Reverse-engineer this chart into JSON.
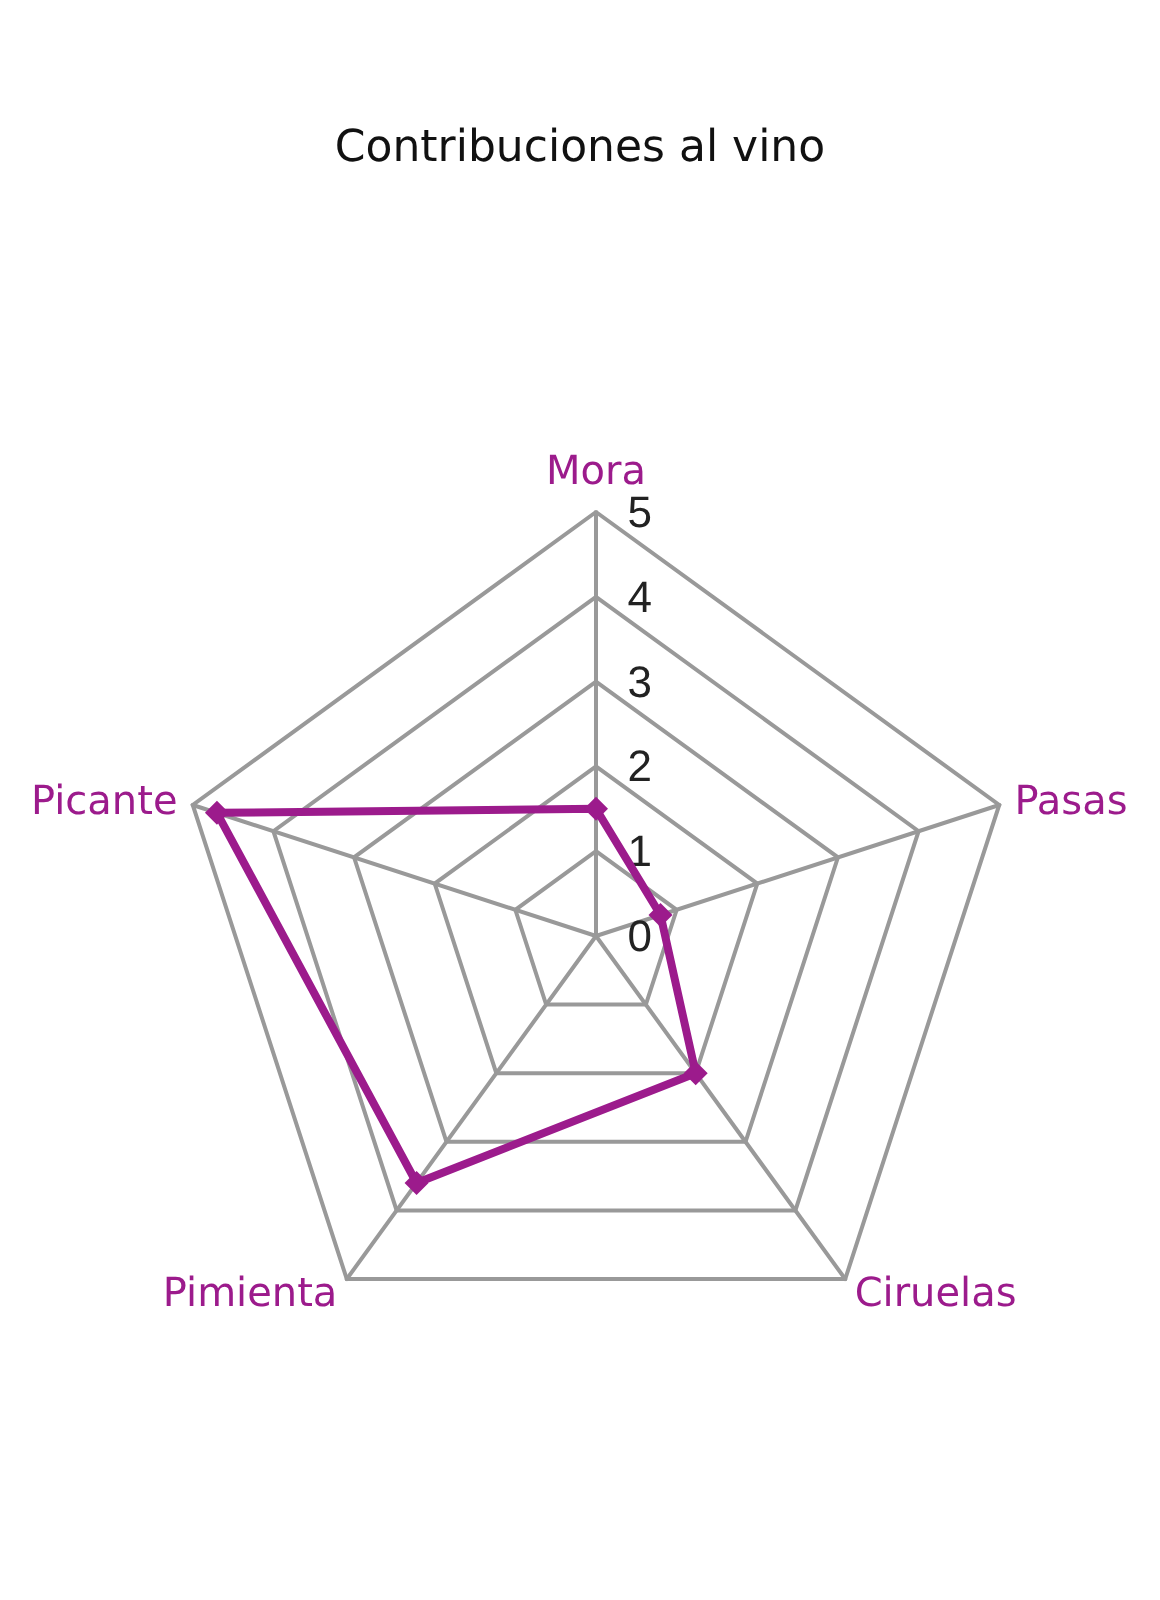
{
  "chart_data": {
    "type": "radar",
    "title": "Contribuciones al vino",
    "categories": [
      "Mora",
      "Pasas",
      "Ciruelas",
      "Pimienta",
      "Picante"
    ],
    "series": [
      {
        "color": "#9c1b8c",
        "values": [
          1.5,
          0.8,
          2.0,
          3.6,
          4.7
        ]
      }
    ],
    "ylim": [
      0,
      5
    ],
    "yticks": [
      0,
      1,
      2,
      3,
      4,
      5
    ],
    "grid": true,
    "marker": "diamond"
  }
}
